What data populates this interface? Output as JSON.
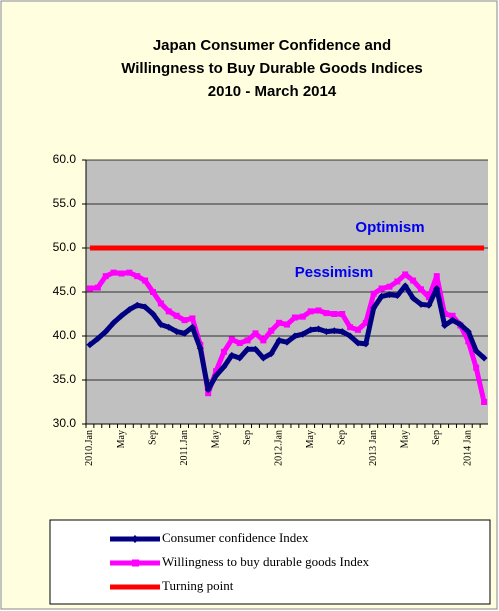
{
  "chart_data": {
    "type": "line",
    "title": [
      "Japan Consumer Confidence and",
      "Willingness to Buy Durable Goods Indices",
      "2010 - March 2014"
    ],
    "categories": [
      "2010.Jan",
      null,
      null,
      null,
      "May",
      null,
      null,
      null,
      "Sep",
      null,
      null,
      null,
      "2011.Jan",
      null,
      null,
      null,
      "May",
      null,
      null,
      null,
      "Sep",
      null,
      null,
      null,
      "2012.Jan",
      null,
      null,
      null,
      "May",
      null,
      null,
      null,
      "Sep",
      null,
      null,
      null,
      "2013 Jan",
      null,
      null,
      null,
      "May",
      null,
      null,
      null,
      "Sep",
      null,
      null,
      null,
      "2014 Jan",
      null,
      null
    ],
    "series": [
      {
        "name": "Consumer confidence Index",
        "color": "#000080",
        "marker": "diamond",
        "values": [
          39,
          39.7,
          40.5,
          41.5,
          42.3,
          43,
          43.5,
          43.3,
          42.5,
          41.3,
          41,
          40.5,
          40.3,
          41,
          38.6,
          33.9,
          35.5,
          36.5,
          37.8,
          37.5,
          38.5,
          38.5,
          37.5,
          38,
          39.5,
          39.3,
          40,
          40.2,
          40.7,
          40.8,
          40.5,
          40.6,
          40.5,
          40,
          39.2,
          39.1,
          43.2,
          44.5,
          44.7,
          44.6,
          45.7,
          44.3,
          43.6,
          43.5,
          45.4,
          41.2,
          41.8,
          41.3,
          40.5,
          38.3,
          37.5
        ]
      },
      {
        "name": "Willingness to buy durable goods Index",
        "color": "#ff00ff",
        "marker": "square",
        "values": [
          45.4,
          45.5,
          46.8,
          47.2,
          47.1,
          47.2,
          46.8,
          46.3,
          45,
          43.7,
          42.8,
          42.3,
          41.8,
          42,
          39,
          33.5,
          36,
          38.2,
          39.6,
          39.2,
          39.5,
          40.3,
          39.5,
          40.6,
          41.5,
          41.3,
          42.1,
          42.2,
          42.8,
          42.9,
          42.6,
          42.5,
          42.5,
          41,
          40.7,
          41.5,
          44.8,
          45.4,
          45.6,
          46.2,
          47,
          46.3,
          45.3,
          44.4,
          46.8,
          42.5,
          42.3,
          41.2,
          39.4,
          36.4,
          32.5
        ]
      },
      {
        "name": "Turning point",
        "color": "#ff0000",
        "marker": "none",
        "values": [
          50,
          50,
          50,
          50,
          50,
          50,
          50,
          50,
          50,
          50,
          50,
          50,
          50,
          50,
          50,
          50,
          50,
          50,
          50,
          50,
          50,
          50,
          50,
          50,
          50,
          50,
          50,
          50,
          50,
          50,
          50,
          50,
          50,
          50,
          50,
          50,
          50,
          50,
          50,
          50,
          50,
          50,
          50,
          50,
          50,
          50,
          50,
          50,
          50,
          50,
          50
        ]
      }
    ],
    "ylim": [
      30,
      60
    ],
    "yticks": [
      {
        "value": 30,
        "label": "30.0"
      },
      {
        "value": 35,
        "label": "35.0"
      },
      {
        "value": 40,
        "label": "40.0"
      },
      {
        "value": 45,
        "label": "45.0"
      },
      {
        "value": 50,
        "label": "50.0"
      },
      {
        "value": 55,
        "label": "55.0"
      },
      {
        "value": 60,
        "label": "60.0"
      }
    ],
    "grid": true,
    "annotations": [
      "Optimism",
      "Pessimism"
    ],
    "legend": "bottom"
  }
}
